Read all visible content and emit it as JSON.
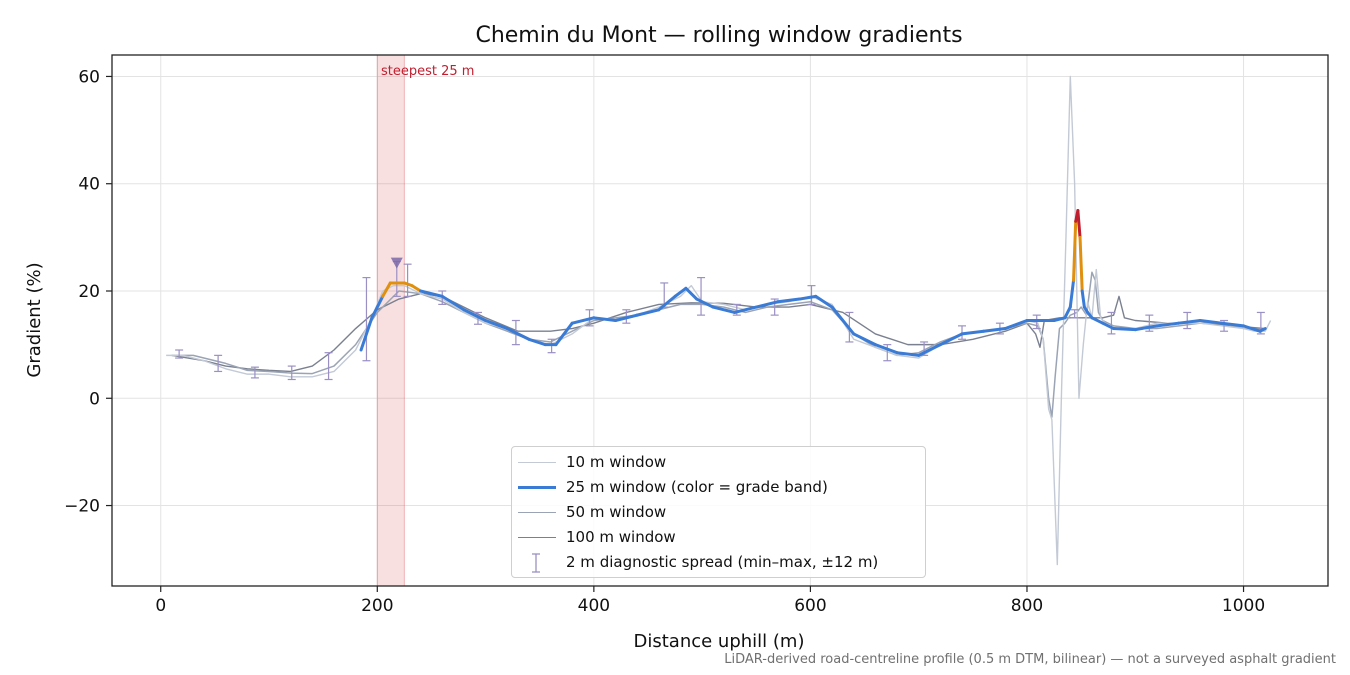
{
  "chart_data": {
    "type": "line",
    "title": "Chemin du Mont — rolling window gradients",
    "xlabel": "Distance uphill (m)",
    "ylabel": "Gradient (%)",
    "xlim": [
      -45,
      1078
    ],
    "ylim": [
      -35,
      64
    ],
    "xticks": [
      0,
      200,
      400,
      600,
      800,
      1000
    ],
    "yticks": [
      -20,
      0,
      20,
      40,
      60
    ],
    "ytick_labels": [
      "−20",
      "0",
      "20",
      "40",
      "60"
    ],
    "grid": true,
    "legend_position": "lower center",
    "highlight": {
      "x0": 200,
      "x1": 225,
      "label": "steepest 25 m",
      "color": "#d64550"
    },
    "peak_marker": {
      "x": 218,
      "y": 25.3
    },
    "series": [
      {
        "name": "10 m window",
        "color": "#c3cad6",
        "x": [
          5,
          20,
          40,
          60,
          80,
          100,
          120,
          140,
          160,
          180,
          195,
          205,
          215,
          225,
          240,
          260,
          280,
          300,
          320,
          340,
          360,
          380,
          400,
          420,
          440,
          460,
          480,
          490,
          500,
          520,
          540,
          560,
          580,
          600,
          620,
          640,
          660,
          680,
          700,
          720,
          740,
          760,
          780,
          800,
          810,
          815,
          820,
          823,
          828,
          832,
          836,
          840,
          844,
          848,
          852,
          856,
          860,
          864,
          868,
          872,
          880,
          900,
          920,
          940,
          960,
          980,
          1000,
          1010,
          1020,
          1025
        ],
        "y": [
          8,
          8,
          7,
          5.5,
          4.5,
          4.5,
          4,
          4,
          5,
          9,
          15,
          20,
          21,
          21,
          19.5,
          18.5,
          16,
          14,
          13,
          11,
          10,
          12,
          15,
          14.5,
          15.5,
          17,
          19,
          21,
          18,
          17.5,
          16.5,
          17.5,
          18,
          19,
          17.5,
          11,
          9.5,
          8,
          7.5,
          10,
          12,
          12.5,
          13,
          14.5,
          14,
          11,
          -2,
          -4,
          -31,
          2,
          30,
          60,
          40,
          0,
          10,
          18,
          15,
          24,
          15,
          14,
          13,
          13,
          14,
          14,
          14,
          13.5,
          13,
          12.5,
          12.5,
          14.5
        ]
      },
      {
        "name": "25 m window (color = grade band)",
        "color": "#3a7bd5",
        "x": [
          185,
          195,
          205,
          212,
          218,
          225,
          232,
          240,
          260,
          280,
          300,
          320,
          340,
          355,
          365,
          380,
          400,
          420,
          440,
          460,
          475,
          485,
          495,
          510,
          530,
          550,
          570,
          590,
          605,
          620,
          640,
          660,
          680,
          700,
          720,
          740,
          760,
          780,
          800,
          815,
          825,
          835,
          840,
          843,
          845,
          847,
          849,
          851,
          853,
          856,
          860,
          870,
          880,
          900,
          920,
          940,
          960,
          980,
          1000,
          1015,
          1020
        ],
        "y": [
          9,
          15,
          19,
          21.5,
          21.5,
          21.5,
          21,
          20,
          19,
          16.5,
          14.5,
          13,
          11,
          10,
          10,
          14,
          15,
          14.5,
          15.5,
          16.5,
          19,
          20.5,
          18.5,
          17,
          16,
          17,
          18,
          18.5,
          19,
          17,
          12,
          10,
          8.5,
          8,
          10,
          12,
          12.5,
          13,
          14.5,
          14.5,
          14.5,
          15,
          17,
          22,
          33,
          35,
          30,
          20,
          17,
          16,
          15,
          14,
          13,
          12.8,
          13.5,
          14,
          14.5,
          14,
          13.5,
          12.5,
          13
        ]
      },
      {
        "name": "50 m window",
        "color": "#9aa4b4",
        "x": [
          10,
          30,
          60,
          80,
          100,
          120,
          140,
          160,
          180,
          200,
          220,
          240,
          260,
          280,
          300,
          320,
          340,
          360,
          380,
          400,
          420,
          440,
          460,
          480,
          500,
          520,
          540,
          560,
          580,
          600,
          620,
          640,
          660,
          680,
          700,
          720,
          740,
          760,
          780,
          800,
          810,
          815,
          820,
          823,
          826,
          830,
          835,
          840,
          846,
          850,
          855,
          860,
          863,
          866,
          870,
          880,
          900,
          920,
          940,
          960,
          980,
          1000,
          1020
        ],
        "y": [
          8,
          8,
          6.5,
          5.2,
          5,
          4.7,
          4.6,
          6,
          10,
          16,
          20,
          19.5,
          18,
          16,
          14,
          12.5,
          11,
          10.5,
          12.5,
          14.5,
          15,
          15.5,
          16.5,
          17.5,
          17.5,
          17,
          16,
          17,
          17.5,
          18,
          16.5,
          12,
          9.5,
          8,
          8.5,
          10.5,
          12,
          12.5,
          13,
          14,
          13.5,
          11,
          0,
          -3.5,
          4,
          13,
          14,
          15.5,
          16,
          17,
          15.5,
          23.5,
          22,
          16,
          14.5,
          13.5,
          13,
          13,
          13.5,
          14,
          14,
          13,
          12.8
        ]
      },
      {
        "name": "100 m window",
        "color": "#7a8090",
        "x": [
          10,
          40,
          60,
          80,
          100,
          120,
          140,
          160,
          180,
          200,
          220,
          240,
          260,
          280,
          300,
          330,
          360,
          380,
          400,
          430,
          460,
          490,
          520,
          550,
          580,
          600,
          630,
          660,
          690,
          720,
          750,
          780,
          800,
          808,
          812,
          816,
          830,
          850,
          870,
          880,
          885,
          890,
          900,
          930,
          960,
          990,
          1020
        ],
        "y": [
          8,
          7,
          6,
          5.5,
          5.2,
          5,
          6,
          9,
          13,
          16.5,
          18.5,
          19.5,
          19,
          17,
          15,
          12.5,
          12.5,
          13,
          14,
          16,
          17.5,
          17.8,
          17.7,
          17,
          17,
          17.5,
          16,
          12,
          10,
          10,
          11,
          12.5,
          14,
          12,
          9.5,
          14.5,
          15,
          15,
          15,
          15.5,
          19,
          15,
          14.5,
          14,
          14,
          13.5,
          13
        ]
      }
    ],
    "errorbars": {
      "name": "2 m diagnostic spread (min–max, ±12 m)",
      "color": "#9b90c4",
      "points": [
        {
          "x": 17,
          "lo": 7.5,
          "hi": 9
        },
        {
          "x": 53,
          "lo": 5,
          "hi": 8
        },
        {
          "x": 87,
          "lo": 3.8,
          "hi": 5.8
        },
        {
          "x": 121,
          "lo": 3.5,
          "hi": 6
        },
        {
          "x": 155,
          "lo": 3.5,
          "hi": 8.5
        },
        {
          "x": 190,
          "lo": 7,
          "hi": 22.5
        },
        {
          "x": 218,
          "lo": 19,
          "hi": 25.5
        },
        {
          "x": 228,
          "lo": 19,
          "hi": 25
        },
        {
          "x": 260,
          "lo": 17.5,
          "hi": 20
        },
        {
          "x": 293,
          "lo": 13.8,
          "hi": 16
        },
        {
          "x": 328,
          "lo": 10,
          "hi": 14.5
        },
        {
          "x": 361,
          "lo": 8.5,
          "hi": 11
        },
        {
          "x": 396,
          "lo": 13.5,
          "hi": 16.5
        },
        {
          "x": 430,
          "lo": 14,
          "hi": 16.5
        },
        {
          "x": 465,
          "lo": 17,
          "hi": 21.5
        },
        {
          "x": 499,
          "lo": 15.5,
          "hi": 22.5
        },
        {
          "x": 532,
          "lo": 15.5,
          "hi": 17.5
        },
        {
          "x": 567,
          "lo": 15.5,
          "hi": 18.5
        },
        {
          "x": 601,
          "lo": 17.5,
          "hi": 21
        },
        {
          "x": 636,
          "lo": 10.5,
          "hi": 16
        },
        {
          "x": 671,
          "lo": 7,
          "hi": 10
        },
        {
          "x": 705,
          "lo": 8,
          "hi": 10.5
        },
        {
          "x": 740,
          "lo": 11,
          "hi": 13.5
        },
        {
          "x": 775,
          "lo": 12,
          "hi": 14
        },
        {
          "x": 809,
          "lo": 13,
          "hi": 15.5
        },
        {
          "x": 844,
          "lo": 15,
          "hi": 16.5
        },
        {
          "x": 878,
          "lo": 12,
          "hi": 16
        },
        {
          "x": 913,
          "lo": 12.5,
          "hi": 15.5
        },
        {
          "x": 948,
          "lo": 13,
          "hi": 16
        },
        {
          "x": 982,
          "lo": 12.5,
          "hi": 14.5
        },
        {
          "x": 1016,
          "lo": 12,
          "hi": 16
        }
      ]
    }
  },
  "legend": {
    "items": [
      {
        "label": "10 m window",
        "color": "#c3cad6",
        "width": 1.5
      },
      {
        "label": "25 m window (color = grade band)",
        "color": "#3a7bd5",
        "width": 3
      },
      {
        "label": "50 m window",
        "color": "#9aa4b4",
        "width": 1.5
      },
      {
        "label": "100 m window",
        "color": "#7a8090",
        "width": 1.5
      },
      {
        "label": "2 m diagnostic spread (min–max, ±12 m)",
        "color": "#9b90c4",
        "width": 0
      }
    ]
  },
  "grade_band_colors": {
    "normal": "#3a7bd5",
    "steep": "#e0900e",
    "extreme": "#c01f2f"
  },
  "footer": "LiDAR-derived road-centreline profile (0.5 m DTM, bilinear) — not a surveyed asphalt gradient"
}
